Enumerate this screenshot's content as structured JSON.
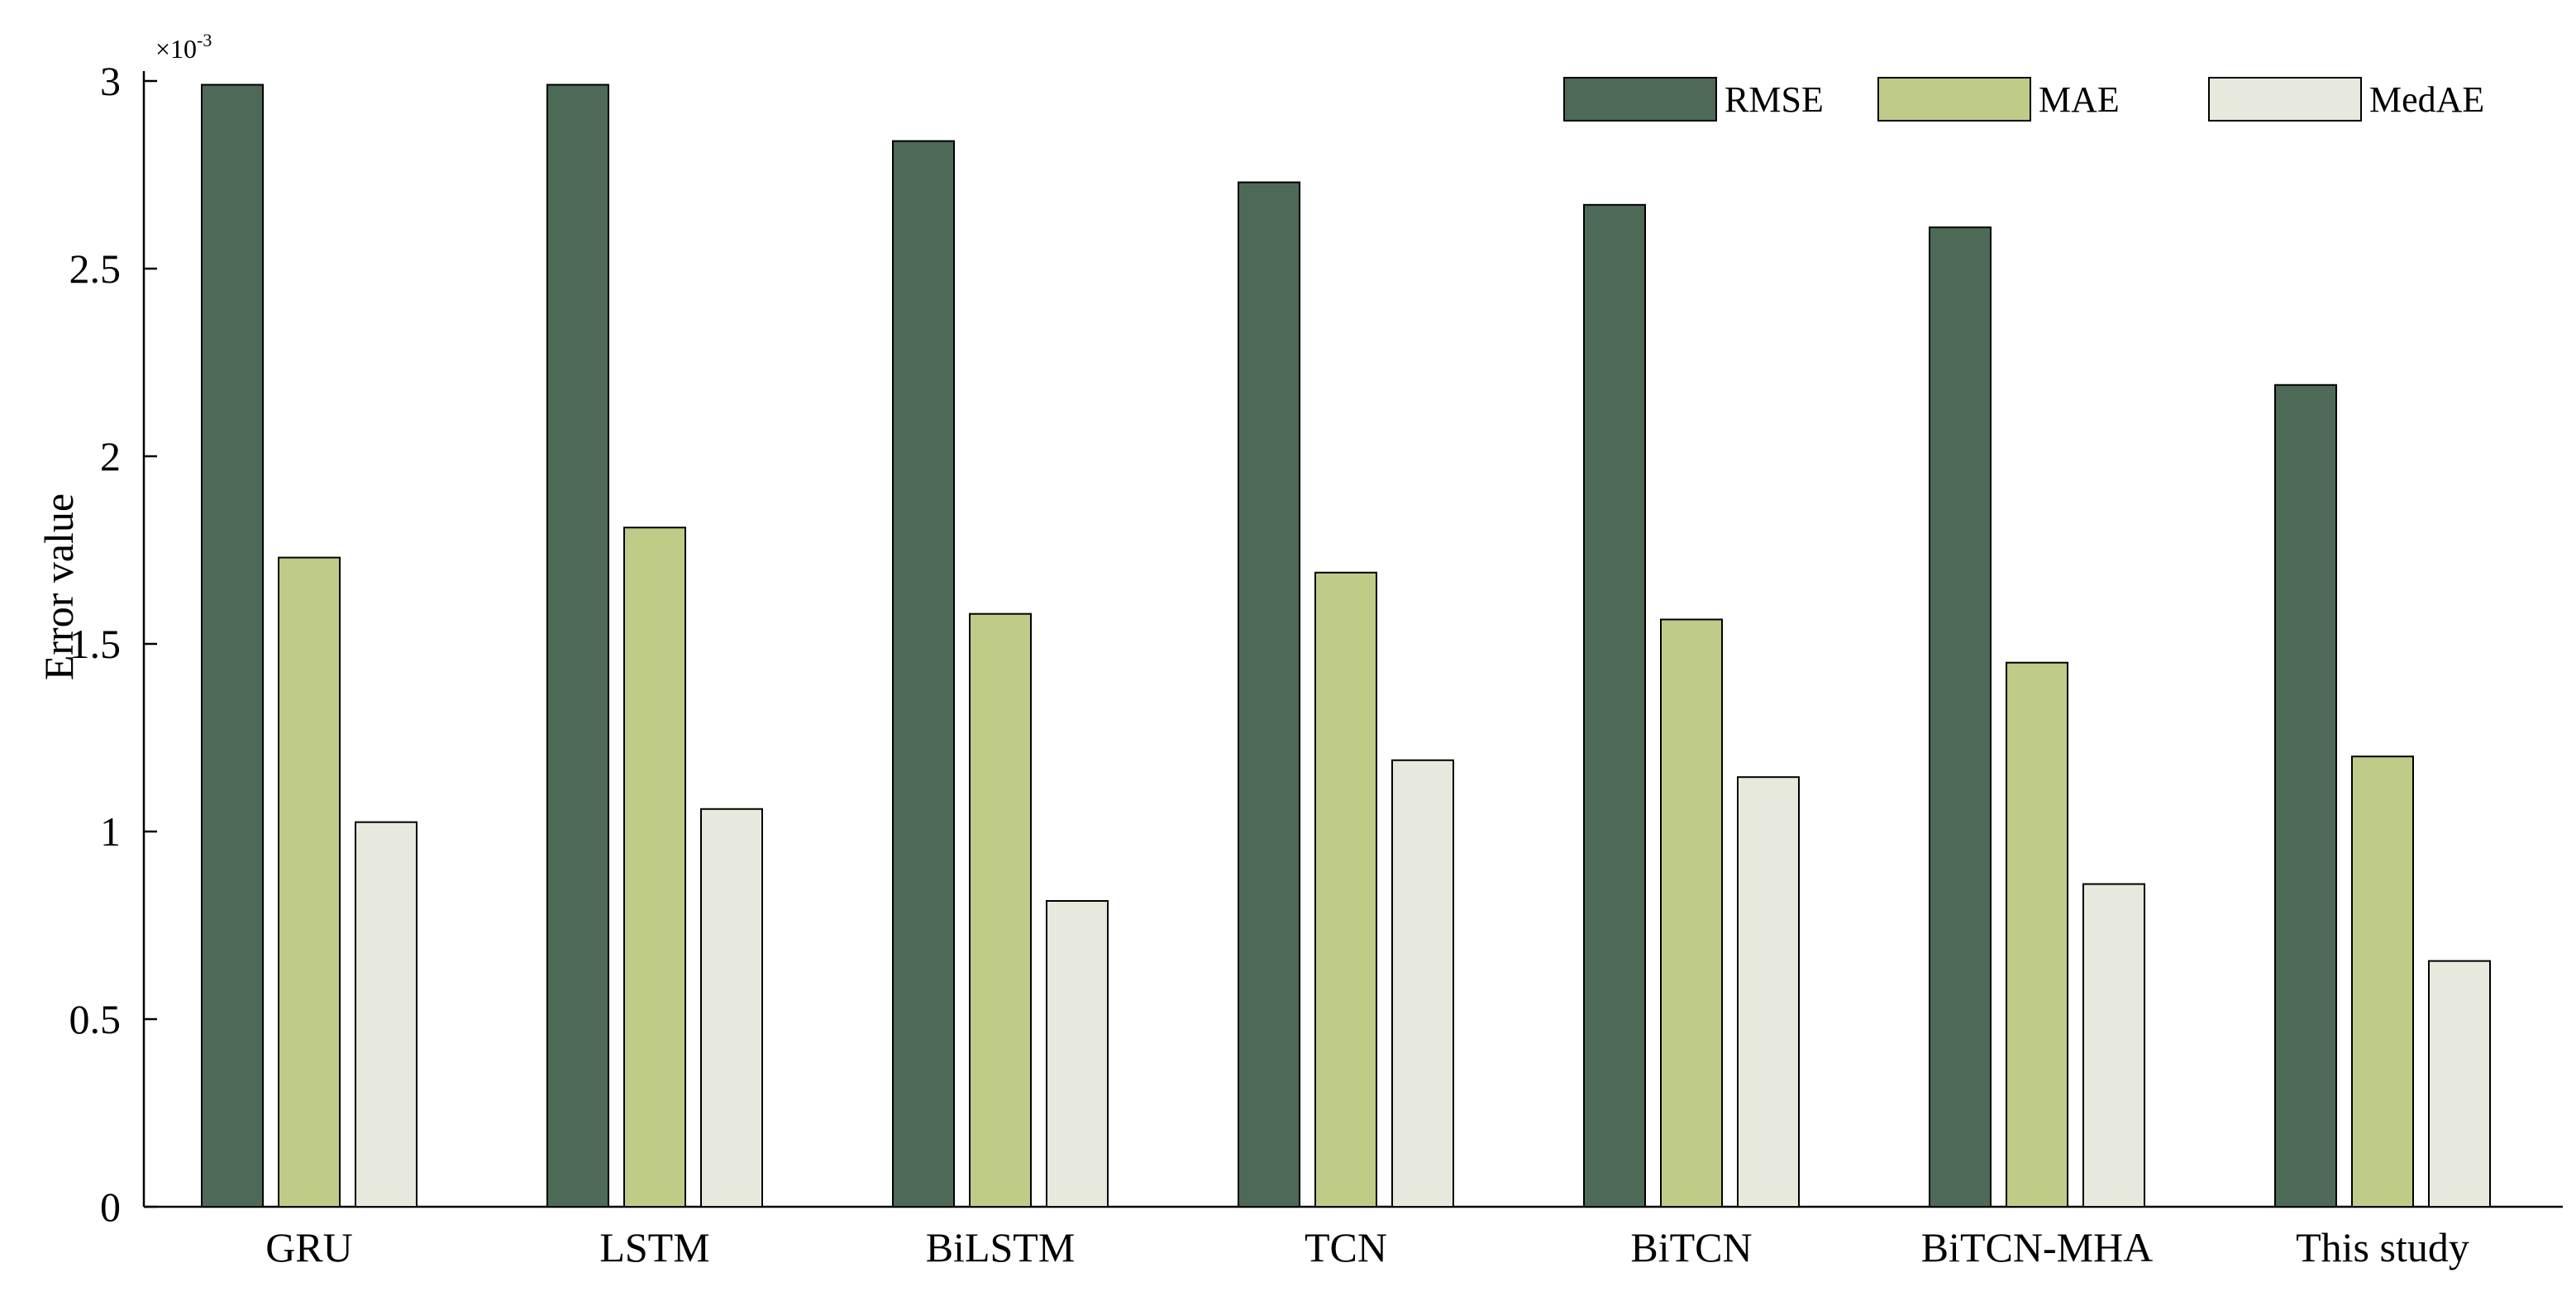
{
  "chart_data": {
    "type": "bar",
    "ylabel": "Error value",
    "y_exponent_label": "×10",
    "y_exponent_power": "-3",
    "ylim": [
      0,
      3
    ],
    "yticks": [
      0,
      0.5,
      1,
      1.5,
      2,
      2.5,
      3
    ],
    "ytick_labels": [
      "0",
      "0.5",
      "1",
      "1.5",
      "2",
      "2.5",
      "3"
    ],
    "categories": [
      "GRU",
      "LSTM",
      "BiLSTM",
      "TCN",
      "BiTCN",
      "BiTCN-MHA",
      "This study"
    ],
    "series": [
      {
        "name": "RMSE",
        "color": "#4d6a57",
        "values": [
          2.99,
          2.99,
          2.84,
          2.73,
          2.67,
          2.61,
          2.19
        ]
      },
      {
        "name": "MAE",
        "color": "#bfcc87",
        "values": [
          1.73,
          1.81,
          1.58,
          1.69,
          1.565,
          1.45,
          1.2
        ]
      },
      {
        "name": "MedAE",
        "color": "#e6e9dc",
        "values": [
          1.025,
          1.06,
          0.815,
          1.19,
          1.145,
          0.86,
          0.655
        ]
      }
    ],
    "legend_position": "top-right",
    "grid": false
  }
}
